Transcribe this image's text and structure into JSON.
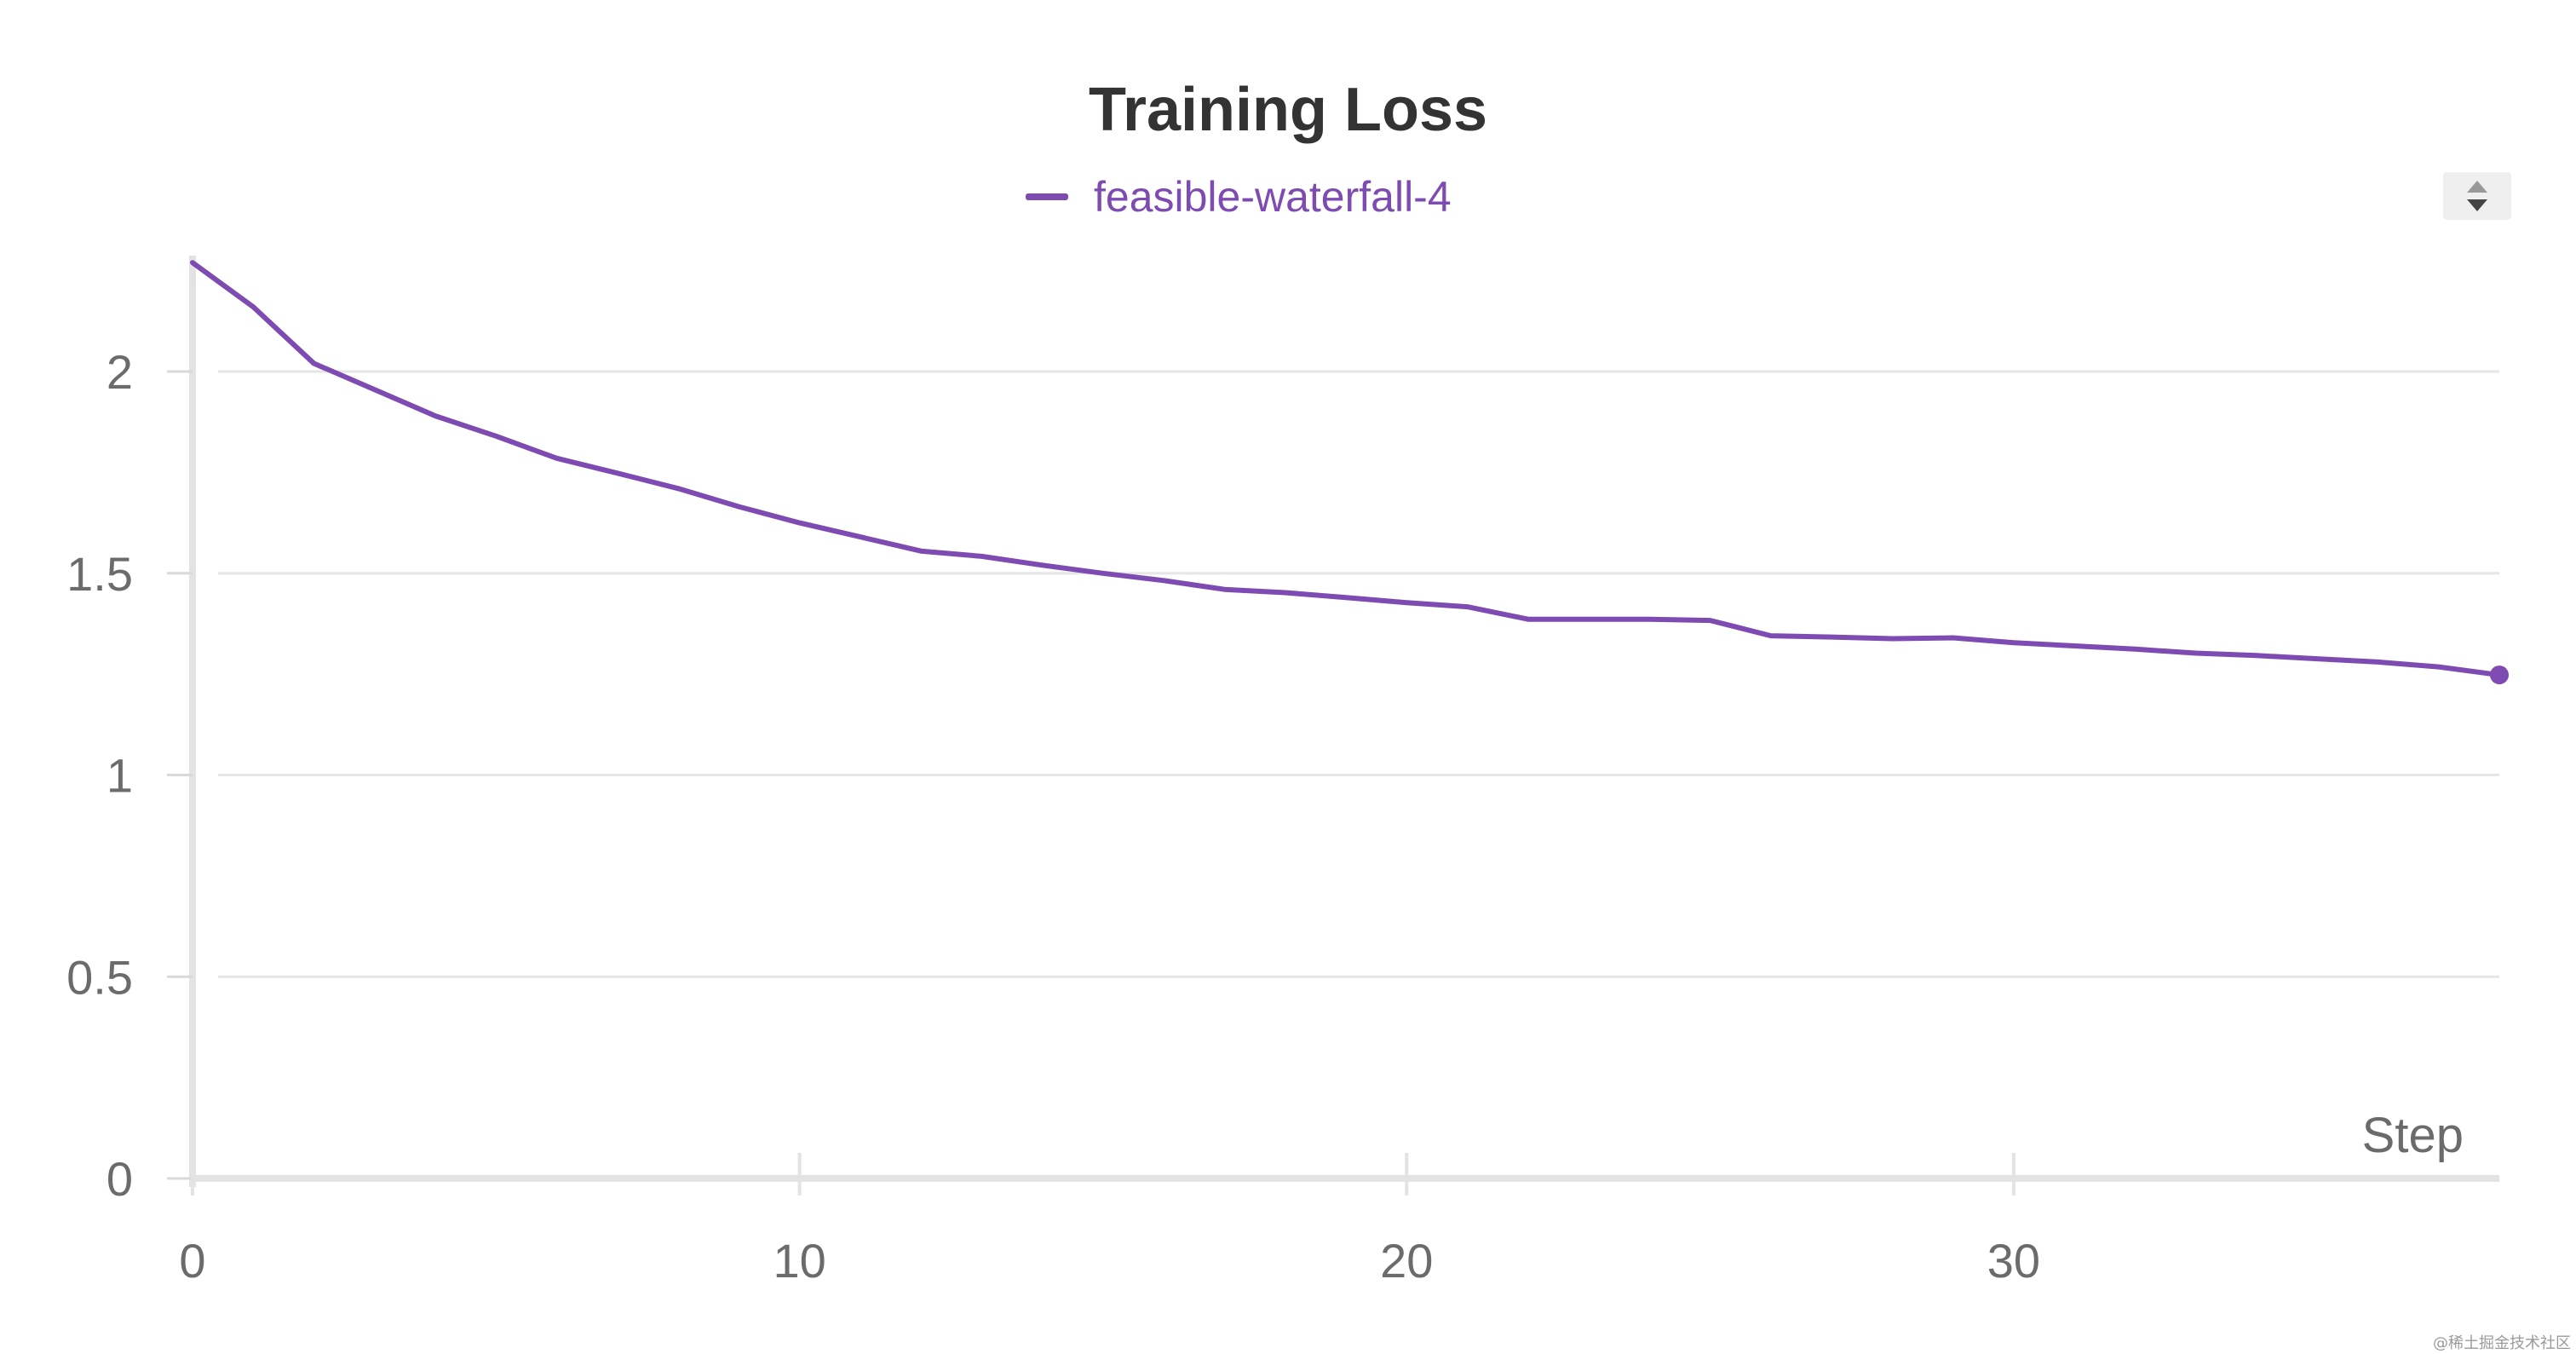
{
  "chart_data": {
    "type": "line",
    "title": "Training Loss",
    "xlabel": "Step",
    "ylabel": "",
    "xlim": [
      0,
      38
    ],
    "ylim": [
      0,
      2.28
    ],
    "x_ticks": [
      "0",
      "10",
      "20",
      "30"
    ],
    "y_ticks": [
      "0",
      "0.5",
      "1",
      "1.5",
      "2"
    ],
    "grid": true,
    "legend_position": "top-center",
    "series": [
      {
        "name": "feasible-waterfall-4",
        "color": "#7d4bb1",
        "x": [
          0,
          1,
          2,
          3,
          4,
          5,
          6,
          7,
          8,
          9,
          10,
          11,
          12,
          13,
          14,
          15,
          16,
          17,
          18,
          19,
          20,
          21,
          22,
          23,
          24,
          25,
          26,
          27,
          28,
          29,
          30,
          31,
          32,
          33,
          34,
          35,
          36,
          37,
          38
        ],
        "y": [
          2.27,
          2.16,
          2.02,
          1.955,
          1.89,
          1.84,
          1.785,
          1.748,
          1.71,
          1.665,
          1.625,
          1.59,
          1.555,
          1.542,
          1.52,
          1.5,
          1.482,
          1.46,
          1.452,
          1.44,
          1.427,
          1.417,
          1.386,
          1.386,
          1.386,
          1.383,
          1.345,
          1.342,
          1.338,
          1.34,
          1.328,
          1.32,
          1.312,
          1.302,
          1.296,
          1.288,
          1.28,
          1.268,
          1.248
        ]
      }
    ]
  },
  "controls": {
    "sort_icon": "sort-up-down-icon"
  },
  "watermark": "@稀土掘金技术社区"
}
